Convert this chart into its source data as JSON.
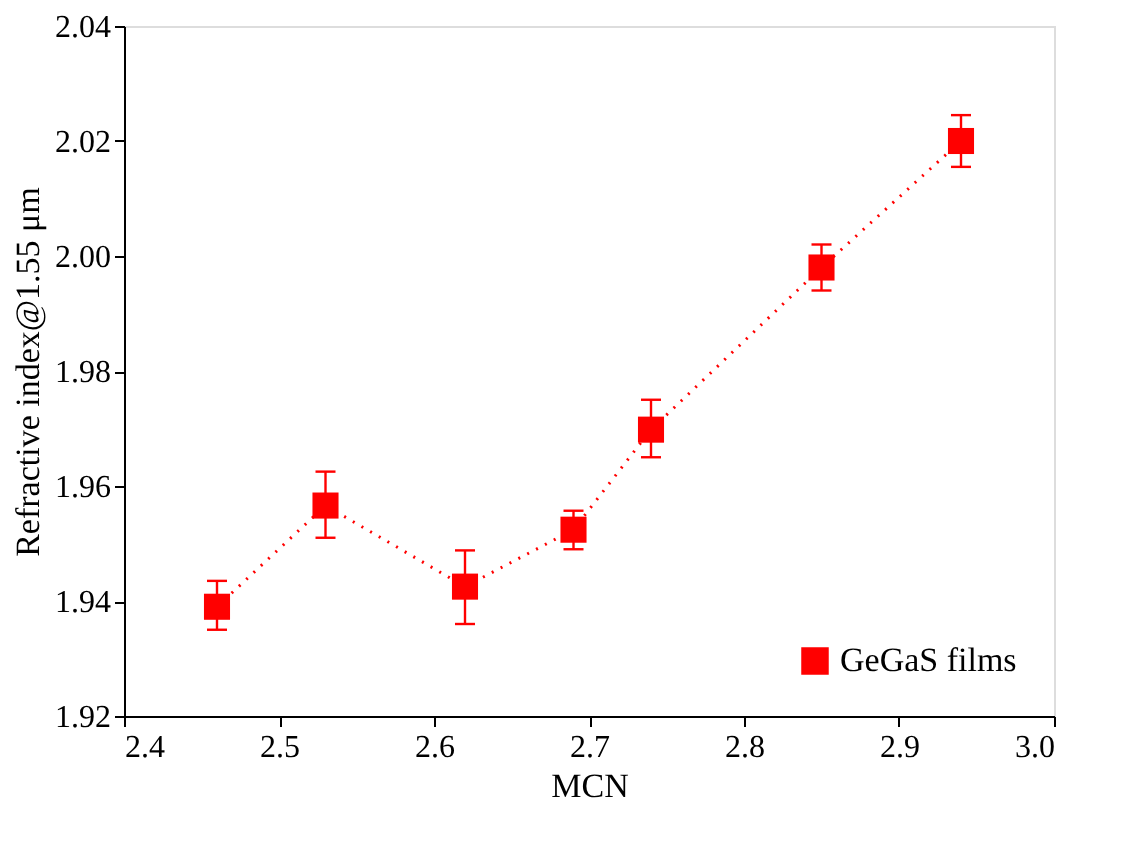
{
  "chart_data": {
    "type": "line",
    "xlabel": "MCN",
    "ylabel": "Refractive index@1.55 μm",
    "x": [
      2.46,
      2.53,
      2.62,
      2.69,
      2.74,
      2.85,
      2.94
    ],
    "series": [
      {
        "name": "GeGaS films",
        "color": "#ff0000",
        "values": [
          1.939,
          1.9566,
          1.9425,
          1.9524,
          1.9698,
          1.998,
          2.02
        ],
        "errors": [
          [
            1.935,
            1.9435
          ],
          [
            1.951,
            1.9625
          ],
          [
            1.936,
            1.9488
          ],
          [
            1.949,
            1.9557
          ],
          [
            1.965,
            1.975
          ],
          [
            1.994,
            2.002
          ],
          [
            2.0155,
            2.0245
          ]
        ]
      }
    ],
    "xlim": [
      2.4,
      3.0
    ],
    "xticks": [
      2.4,
      2.5,
      2.6,
      2.7,
      2.8,
      2.9,
      {
        "value": 3.0,
        "label": "3.0"
      }
    ],
    "ylim": [
      1.92,
      2.04
    ],
    "yticks": [
      1.92,
      1.94,
      1.96,
      1.98,
      {
        "value": 2.0,
        "label": "2.00"
      },
      2.02,
      2.04
    ],
    "marker": "square",
    "line_style": "dotted",
    "legend": "bottom right",
    "grid": false
  }
}
